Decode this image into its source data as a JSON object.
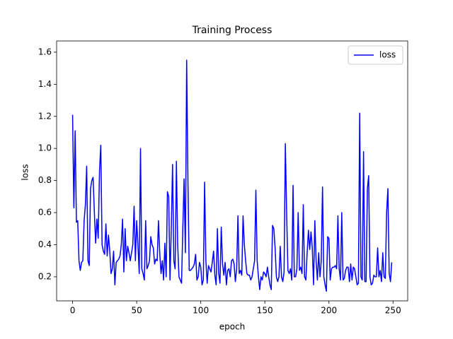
{
  "chart_data": {
    "type": "line",
    "title": "Training Process",
    "x_label": "epoch",
    "y_label": "loss",
    "x": [
      0,
      1,
      2,
      3,
      4,
      5,
      6,
      7,
      8,
      9,
      10,
      11,
      12,
      13,
      14,
      15,
      16,
      17,
      18,
      19,
      20,
      21,
      22,
      23,
      24,
      25,
      26,
      27,
      28,
      29,
      30,
      31,
      32,
      33,
      34,
      35,
      36,
      37,
      38,
      39,
      40,
      41,
      42,
      43,
      44,
      45,
      46,
      47,
      48,
      49,
      50,
      51,
      52,
      53,
      54,
      55,
      56,
      57,
      58,
      59,
      60,
      61,
      62,
      63,
      64,
      65,
      66,
      67,
      68,
      69,
      70,
      71,
      72,
      73,
      74,
      75,
      76,
      77,
      78,
      79,
      80,
      81,
      82,
      83,
      84,
      85,
      86,
      87,
      88,
      89,
      90,
      91,
      92,
      93,
      94,
      95,
      96,
      97,
      98,
      99,
      100,
      101,
      102,
      103,
      104,
      105,
      106,
      107,
      108,
      109,
      110,
      111,
      112,
      113,
      114,
      115,
      116,
      117,
      118,
      119,
      120,
      121,
      122,
      123,
      124,
      125,
      126,
      127,
      128,
      129,
      130,
      131,
      132,
      133,
      134,
      135,
      136,
      137,
      138,
      139,
      140,
      141,
      142,
      143,
      144,
      145,
      146,
      147,
      148,
      149,
      150,
      151,
      152,
      153,
      154,
      155,
      156,
      157,
      158,
      159,
      160,
      161,
      162,
      163,
      164,
      165,
      166,
      167,
      168,
      169,
      170,
      171,
      172,
      173,
      174,
      175,
      176,
      177,
      178,
      179,
      180,
      181,
      182,
      183,
      184,
      185,
      186,
      187,
      188,
      189,
      190,
      191,
      192,
      193,
      194,
      195,
      196,
      197,
      198,
      199,
      200,
      201,
      202,
      203,
      204,
      205,
      206,
      207,
      208,
      209,
      210,
      211,
      212,
      213,
      214,
      215,
      216,
      217,
      218,
      219,
      220,
      221,
      222,
      223,
      224,
      225,
      226,
      227,
      228,
      229,
      230,
      231,
      232,
      233,
      234,
      235,
      236,
      237,
      238,
      239,
      240,
      241,
      242,
      243,
      244,
      245,
      246,
      247,
      248,
      249
    ],
    "series": [
      {
        "name": "loss",
        "color": "#0000ff",
        "values": [
          1.21,
          0.63,
          1.11,
          0.54,
          0.55,
          0.3,
          0.24,
          0.29,
          0.3,
          0.55,
          0.65,
          0.89,
          0.3,
          0.27,
          0.75,
          0.8,
          0.82,
          0.6,
          0.41,
          0.56,
          0.44,
          0.86,
          1.02,
          0.4,
          0.36,
          0.34,
          0.53,
          0.33,
          0.46,
          0.36,
          0.22,
          0.25,
          0.36,
          0.15,
          0.29,
          0.3,
          0.31,
          0.33,
          0.4,
          0.56,
          0.23,
          0.5,
          0.3,
          0.39,
          0.35,
          0.3,
          0.35,
          0.4,
          0.64,
          0.3,
          0.55,
          0.4,
          0.22,
          1.0,
          0.25,
          0.22,
          0.18,
          0.55,
          0.25,
          0.27,
          0.3,
          0.45,
          0.4,
          0.38,
          0.28,
          0.31,
          0.3,
          0.55,
          0.35,
          0.22,
          0.3,
          0.18,
          0.41,
          0.2,
          0.73,
          0.7,
          0.18,
          0.5,
          0.9,
          0.3,
          0.25,
          0.92,
          0.4,
          0.2,
          0.18,
          0.16,
          0.5,
          0.81,
          0.35,
          1.55,
          0.8,
          0.24,
          0.24,
          0.25,
          0.26,
          0.28,
          0.34,
          0.18,
          0.2,
          0.29,
          0.26,
          0.15,
          0.18,
          0.79,
          0.3,
          0.16,
          0.27,
          0.25,
          0.23,
          0.29,
          0.36,
          0.21,
          0.15,
          0.5,
          0.22,
          0.16,
          0.51,
          0.28,
          0.21,
          0.29,
          0.15,
          0.24,
          0.25,
          0.2,
          0.3,
          0.31,
          0.28,
          0.17,
          0.25,
          0.58,
          0.22,
          0.24,
          0.21,
          0.58,
          0.4,
          0.3,
          0.22,
          0.21,
          0.21,
          0.18,
          0.2,
          0.25,
          0.3,
          0.74,
          0.3,
          0.2,
          0.12,
          0.2,
          0.18,
          0.23,
          0.22,
          0.2,
          0.26,
          0.2,
          0.15,
          0.12,
          0.52,
          0.5,
          0.38,
          0.2,
          0.17,
          0.2,
          0.39,
          0.2,
          0.17,
          0.23,
          1.03,
          0.6,
          0.24,
          0.22,
          0.25,
          0.18,
          0.77,
          0.2,
          0.2,
          0.25,
          0.6,
          0.24,
          0.26,
          0.22,
          0.65,
          0.2,
          0.18,
          0.35,
          0.49,
          0.37,
          0.48,
          0.38,
          0.15,
          0.55,
          0.3,
          0.18,
          0.35,
          0.2,
          0.3,
          0.76,
          0.2,
          0.15,
          0.11,
          0.45,
          0.44,
          0.18,
          0.25,
          0.26,
          0.26,
          0.27,
          0.25,
          0.58,
          0.25,
          0.18,
          0.6,
          0.18,
          0.19,
          0.24,
          0.26,
          0.26,
          0.17,
          0.28,
          0.18,
          0.26,
          0.25,
          0.2,
          0.15,
          0.16,
          1.22,
          0.2,
          0.18,
          0.98,
          0.17,
          0.17,
          0.75,
          0.83,
          0.2,
          0.15,
          0.16,
          0.21,
          0.2,
          0.2,
          0.38,
          0.2,
          0.24,
          0.17,
          0.35,
          0.2,
          0.19,
          0.6,
          0.75,
          0.22,
          0.17,
          0.29
        ]
      }
    ],
    "xlim": [
      -12.45,
      261.45
    ],
    "xticks": [
      0,
      50,
      100,
      150,
      200,
      250
    ],
    "ylim": [
      0.05,
      1.67
    ],
    "yticks": [
      0.2,
      0.4,
      0.6,
      0.8,
      {
        "value": 1,
        "label": "1.0"
      },
      1.2,
      1.4,
      1.6
    ],
    "legend": "upper right"
  }
}
